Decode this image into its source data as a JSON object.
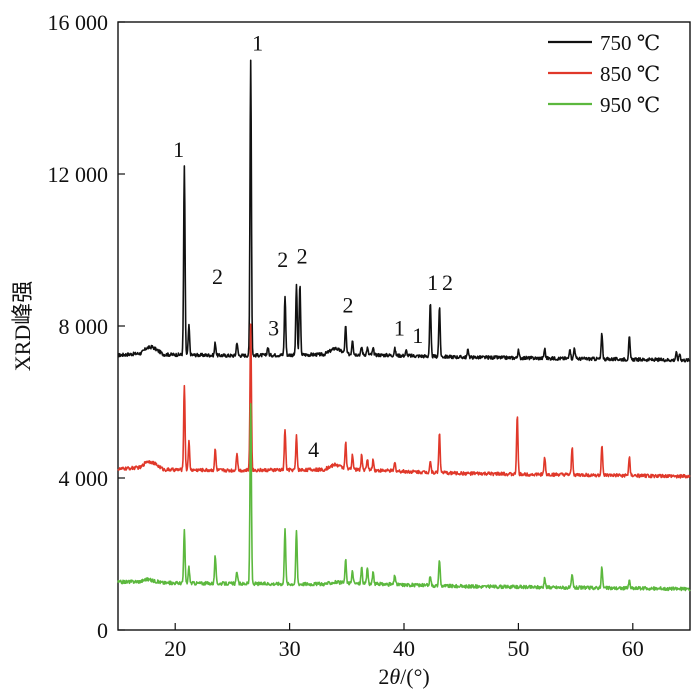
{
  "chart_data": {
    "type": "line",
    "title": "",
    "xlabel_prefix": "2",
    "xlabel_theta": "θ",
    "xlabel_suffix": "/(°)",
    "ylabel": "XRD峰强",
    "xlim": [
      15,
      65
    ],
    "ylim": [
      0,
      16000
    ],
    "xticks": [
      20,
      30,
      40,
      50,
      60
    ],
    "xtick_labels": [
      "20",
      "30",
      "40",
      "50",
      "60"
    ],
    "yticks": [
      0,
      4000,
      8000,
      12000,
      16000
    ],
    "ytick_labels": [
      "0",
      "4 000",
      "8 000",
      "12 000",
      "16 000"
    ],
    "grid": false,
    "legend_position": "top-right",
    "series": [
      {
        "name": "750 ℃",
        "color": "#111111",
        "baseline": 7200,
        "background": [
          [
            15,
            7230
          ],
          [
            17,
            7280
          ],
          [
            17.5,
            7420
          ],
          [
            18,
            7450
          ],
          [
            19,
            7250
          ],
          [
            25,
            7220
          ],
          [
            33,
            7250
          ],
          [
            34,
            7420
          ],
          [
            35,
            7260
          ],
          [
            45,
            7180
          ],
          [
            65,
            7100
          ]
        ],
        "peaks": [
          [
            20.8,
            12200
          ],
          [
            21.2,
            8000
          ],
          [
            23.5,
            7560
          ],
          [
            25.4,
            7580
          ],
          [
            26.6,
            15000
          ],
          [
            28.1,
            7450
          ],
          [
            29.6,
            8800
          ],
          [
            30.6,
            9100
          ],
          [
            30.9,
            9100
          ],
          [
            34.9,
            8000
          ],
          [
            35.5,
            7650
          ],
          [
            36.3,
            7450
          ],
          [
            36.8,
            7420
          ],
          [
            37.3,
            7400
          ],
          [
            39.2,
            7400
          ],
          [
            40.2,
            7350
          ],
          [
            42.3,
            8600
          ],
          [
            43.1,
            8500
          ],
          [
            45.6,
            7380
          ],
          [
            50.0,
            7350
          ],
          [
            52.3,
            7400
          ],
          [
            54.5,
            7420
          ],
          [
            54.9,
            7440
          ],
          [
            57.3,
            7800
          ],
          [
            59.7,
            7700
          ],
          [
            63.8,
            7300
          ],
          [
            64.1,
            7280
          ]
        ]
      },
      {
        "name": "850 ℃",
        "color": "#e0382a",
        "baseline": 4200,
        "background": [
          [
            15,
            4230
          ],
          [
            17,
            4280
          ],
          [
            17.5,
            4440
          ],
          [
            18,
            4420
          ],
          [
            19,
            4220
          ],
          [
            25,
            4200
          ],
          [
            33,
            4220
          ],
          [
            34,
            4360
          ],
          [
            35,
            4230
          ],
          [
            45,
            4120
          ],
          [
            65,
            4040
          ]
        ],
        "peaks": [
          [
            20.8,
            6450
          ],
          [
            21.2,
            4950
          ],
          [
            23.5,
            4750
          ],
          [
            25.4,
            4680
          ],
          [
            26.6,
            8050
          ],
          [
            29.6,
            5300
          ],
          [
            30.6,
            5100
          ],
          [
            34.9,
            4950
          ],
          [
            35.5,
            4600
          ],
          [
            36.3,
            4600
          ],
          [
            36.8,
            4520
          ],
          [
            37.3,
            4480
          ],
          [
            39.2,
            4400
          ],
          [
            42.3,
            4450
          ],
          [
            43.1,
            5200
          ],
          [
            49.9,
            5650
          ],
          [
            52.3,
            4550
          ],
          [
            54.7,
            4800
          ],
          [
            57.3,
            4850
          ],
          [
            59.7,
            4550
          ]
        ]
      },
      {
        "name": "950 ℃",
        "color": "#5cb83e",
        "baseline": 1200,
        "background": [
          [
            15,
            1260
          ],
          [
            17,
            1280
          ],
          [
            17.5,
            1340
          ],
          [
            18,
            1300
          ],
          [
            19,
            1240
          ],
          [
            25,
            1220
          ],
          [
            33,
            1210
          ],
          [
            34,
            1260
          ],
          [
            35,
            1230
          ],
          [
            45,
            1150
          ],
          [
            65,
            1080
          ]
        ],
        "peaks": [
          [
            20.8,
            2600
          ],
          [
            21.2,
            1650
          ],
          [
            23.5,
            1950
          ],
          [
            25.4,
            1550
          ],
          [
            26.6,
            5950
          ],
          [
            29.6,
            2700
          ],
          [
            30.6,
            2620
          ],
          [
            34.9,
            1850
          ],
          [
            35.5,
            1550
          ],
          [
            36.3,
            1650
          ],
          [
            36.8,
            1650
          ],
          [
            37.3,
            1500
          ],
          [
            39.2,
            1450
          ],
          [
            42.3,
            1450
          ],
          [
            43.1,
            1850
          ],
          [
            52.3,
            1350
          ],
          [
            54.7,
            1450
          ],
          [
            57.3,
            1650
          ],
          [
            59.7,
            1300
          ]
        ]
      }
    ],
    "annotations": [
      {
        "text": "1",
        "x": 20.3,
        "y": 12450
      },
      {
        "text": "1",
        "x": 27.2,
        "y": 15250
      },
      {
        "text": "2",
        "x": 23.7,
        "y": 9100
      },
      {
        "text": "2",
        "x": 29.4,
        "y": 9550
      },
      {
        "text": "2",
        "x": 31.1,
        "y": 9650
      },
      {
        "text": "3",
        "x": 28.6,
        "y": 7750
      },
      {
        "text": "2",
        "x": 35.1,
        "y": 8350
      },
      {
        "text": "1",
        "x": 39.6,
        "y": 7750
      },
      {
        "text": "1",
        "x": 41.2,
        "y": 7550
      },
      {
        "text": "1",
        "x": 42.5,
        "y": 8950
      },
      {
        "text": "2",
        "x": 43.8,
        "y": 8950
      },
      {
        "text": "4",
        "x": 32.1,
        "y": 4550
      }
    ]
  }
}
